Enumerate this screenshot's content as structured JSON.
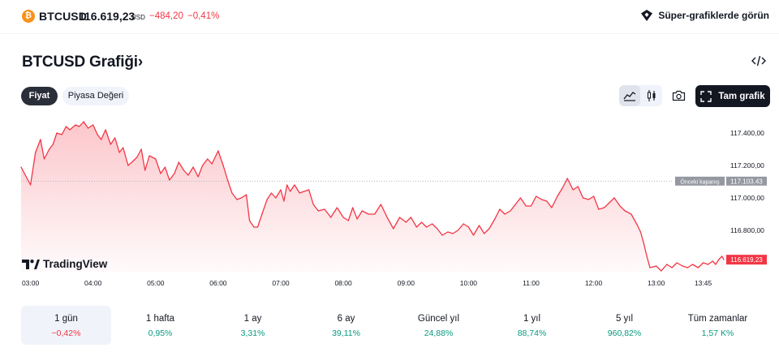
{
  "header": {
    "coin_glyph": "₿",
    "symbol": "BTCUSD",
    "price": "116.619,23",
    "currency": "USD",
    "change": "−484,20",
    "change_pct": "−0,41%",
    "super_charts_label": "Süper-grafiklerde görün",
    "icon": "super-charts-icon"
  },
  "title": {
    "text": "BTCUSD Grafiği",
    "chevron": "›"
  },
  "toggles": {
    "price_label": "Fiyat",
    "market_cap_label": "Piyasa Değeri"
  },
  "toolbar": {
    "full_chart_label": "Tam grafik",
    "icons": [
      "area-chart-icon",
      "candles-icon",
      "camera-icon",
      "fullscreen-icon",
      "embed-code-icon"
    ]
  },
  "brand": {
    "logo_text": "TradingView",
    "logo_mark": "TV"
  },
  "colors": {
    "negative": "#f23645",
    "positive": "#089981",
    "line": "#f23645",
    "prev_close_badge": "#9598a1",
    "last_price_badge": "#f23645"
  },
  "chart_data": {
    "type": "area",
    "symbol": "BTCUSD",
    "interval_view": "1 gün",
    "x_ticks": [
      "03:00",
      "04:00",
      "05:00",
      "06:00",
      "07:00",
      "08:00",
      "09:00",
      "10:00",
      "11:00",
      "12:00",
      "13:00",
      "13:45"
    ],
    "y_ticks": [
      "117.400,00",
      "117.200,00",
      "117.000,00",
      "116.800,00"
    ],
    "y_tick_values": [
      117400,
      117200,
      117000,
      116800
    ],
    "ylim": [
      116540,
      117490
    ],
    "x_range_hours": [
      2.85,
      14.08
    ],
    "previous_close": 117103.43,
    "previous_close_label": "Önceki kapanış",
    "previous_close_text": "117.103,43",
    "last_price": 116619.23,
    "last_price_text": "116.619,23",
    "series": [
      {
        "x_hours": [
          2.85,
          3.0,
          3.08,
          3.16,
          3.22,
          3.3,
          3.36,
          3.42,
          3.5,
          3.57,
          3.63,
          3.72,
          3.78,
          3.85,
          3.92,
          4.0,
          4.07,
          4.13,
          4.2,
          4.28,
          4.35,
          4.42,
          4.48,
          4.56,
          4.62,
          4.7,
          4.77,
          4.83,
          4.9,
          5.0,
          5.08,
          5.15,
          5.22,
          5.3,
          5.37,
          5.45,
          5.52,
          5.6,
          5.68,
          5.75,
          5.83,
          5.9,
          6.0,
          6.08,
          6.15,
          6.22,
          6.3,
          6.37,
          6.45,
          6.5,
          6.57,
          6.63,
          6.7,
          6.78,
          6.85,
          6.92,
          7.0,
          7.05,
          7.1,
          7.15,
          7.22,
          7.3,
          7.37,
          7.45,
          7.52,
          7.6,
          7.7,
          7.8,
          7.9,
          8.0,
          8.08,
          8.15,
          8.22,
          8.3,
          8.4,
          8.5,
          8.6,
          8.7,
          8.8,
          8.9,
          9.0,
          9.08,
          9.17,
          9.25,
          9.33,
          9.42,
          9.5,
          9.58,
          9.67,
          9.75,
          9.83,
          9.92,
          10.0,
          10.08,
          10.17,
          10.25,
          10.33,
          10.42,
          10.5,
          10.58,
          10.67,
          10.75,
          10.83,
          10.92,
          11.0,
          11.08,
          11.17,
          11.25,
          11.33,
          11.42,
          11.5,
          11.58,
          11.67,
          11.75,
          11.83,
          11.92,
          12.0,
          12.08,
          12.17,
          12.25,
          12.33,
          12.42,
          12.5,
          12.6,
          12.7,
          12.75,
          12.8,
          12.85,
          12.9,
          13.0,
          13.08,
          13.17,
          13.25,
          13.33,
          13.42,
          13.5,
          13.58,
          13.67,
          13.75,
          13.83,
          13.9,
          13.95,
          14.0,
          14.05,
          14.08
        ],
        "values": [
          117190,
          117080,
          117280,
          117360,
          117240,
          117300,
          117330,
          117400,
          117390,
          117440,
          117420,
          117450,
          117440,
          117470,
          117430,
          117450,
          117390,
          117360,
          117420,
          117330,
          117370,
          117280,
          117310,
          117200,
          117220,
          117250,
          117300,
          117170,
          117260,
          117240,
          117150,
          117190,
          117110,
          117150,
          117220,
          117170,
          117140,
          117190,
          117130,
          117200,
          117240,
          117210,
          117290,
          117200,
          117110,
          117030,
          116990,
          117000,
          117020,
          116860,
          116820,
          116820,
          116900,
          116990,
          117030,
          117000,
          117050,
          116980,
          117080,
          117040,
          117080,
          117030,
          117040,
          117050,
          116960,
          116920,
          116930,
          116880,
          116940,
          116880,
          116860,
          116940,
          116870,
          116920,
          116900,
          116900,
          116960,
          116880,
          116810,
          116880,
          116850,
          116880,
          116820,
          116850,
          116820,
          116840,
          116810,
          116770,
          116790,
          116780,
          116800,
          116840,
          116820,
          116770,
          116830,
          116780,
          116810,
          116870,
          116930,
          116900,
          116920,
          116960,
          117000,
          116950,
          116950,
          117010,
          116990,
          116980,
          116940,
          117010,
          117060,
          117120,
          117050,
          117070,
          117000,
          116990,
          117010,
          116930,
          116940,
          116970,
          117000,
          116950,
          116920,
          116900,
          116830,
          116790,
          116720,
          116640,
          116570,
          116580,
          116550,
          116590,
          116570,
          116600,
          116580,
          116570,
          116590,
          116570,
          116600,
          116590,
          116610,
          116590,
          116620,
          116640,
          116619.23
        ]
      }
    ]
  },
  "periods": [
    {
      "label": "1 gün",
      "value": "−0,42%",
      "trend": "neg",
      "selected": true
    },
    {
      "label": "1 hafta",
      "value": "0,95%",
      "trend": "pos",
      "selected": false
    },
    {
      "label": "1 ay",
      "value": "3,31%",
      "trend": "pos",
      "selected": false
    },
    {
      "label": "6 ay",
      "value": "39,11%",
      "trend": "pos",
      "selected": false
    },
    {
      "label": "Güncel yıl",
      "value": "24,88%",
      "trend": "pos",
      "selected": false
    },
    {
      "label": "1 yıl",
      "value": "88,74%",
      "trend": "pos",
      "selected": false
    },
    {
      "label": "5 yıl",
      "value": "960,82%",
      "trend": "pos",
      "selected": false
    },
    {
      "label": "Tüm zamanlar",
      "value": "1,57 K%",
      "trend": "pos",
      "selected": false
    }
  ]
}
